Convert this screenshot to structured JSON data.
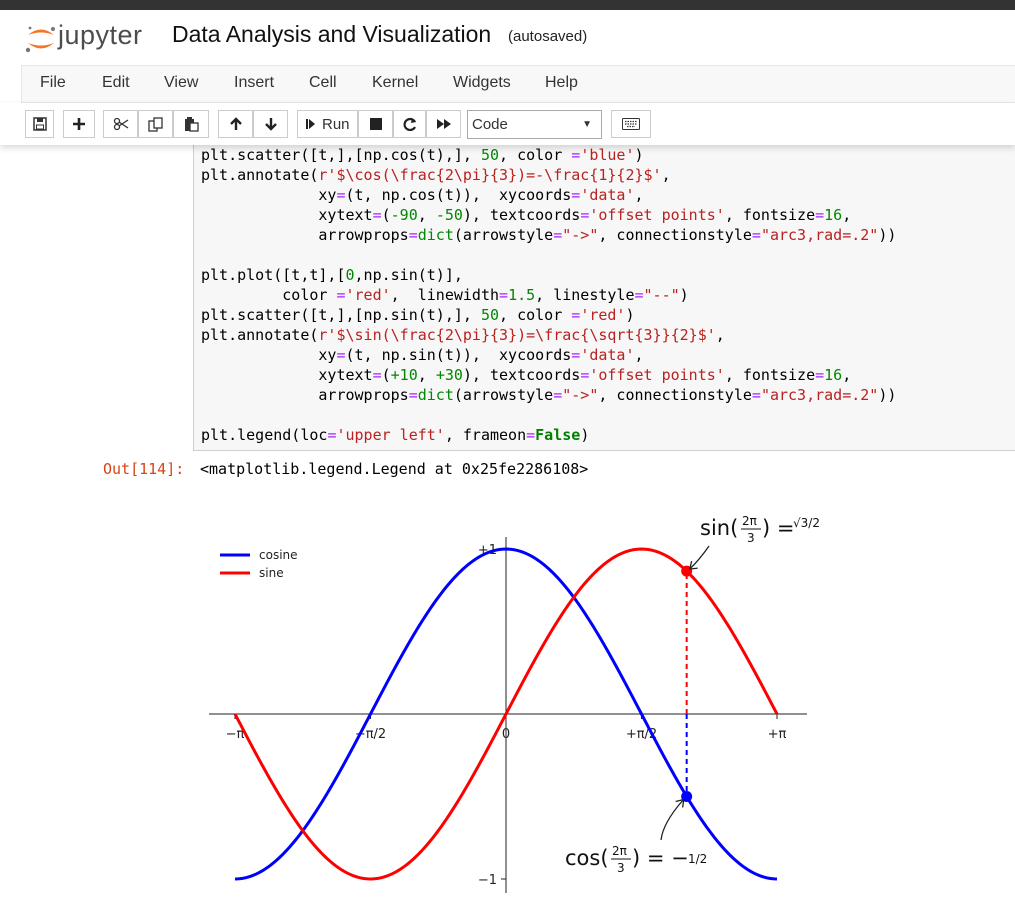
{
  "header": {
    "logo_text": "jupyter",
    "notebook_title": "Data Analysis and Visualization",
    "autosave_status": "(autosaved)"
  },
  "menu": [
    "File",
    "Edit",
    "View",
    "Insert",
    "Cell",
    "Kernel",
    "Widgets",
    "Help"
  ],
  "toolbar": {
    "run_label": "Run",
    "cell_type": "Code",
    "icons": [
      "save-icon",
      "plus-icon",
      "scissors-icon",
      "copy-icon",
      "paste-icon",
      "arrow-up-icon",
      "arrow-down-icon",
      "step-forward-icon",
      "stop-icon",
      "restart-icon",
      "fast-forward-icon",
      "keyboard-icon"
    ]
  },
  "code_lines": [
    "plt.scatter([t,],[np.cos(t),], 50, color ='blue')",
    "plt.annotate(r'$\\cos(\\frac{2\\pi}{3})=-\\frac{1}{2}$',",
    "             xy=(t, np.cos(t)),  xycoords='data',",
    "             xytext=(-90, -50), textcoords='offset points', fontsize=16,",
    "             arrowprops=dict(arrowstyle=\"->\", connectionstyle=\"arc3,rad=.2\"))",
    "",
    "plt.plot([t,t],[0,np.sin(t)],",
    "         color ='red',  linewidth=1.5, linestyle=\"--\")",
    "plt.scatter([t,],[np.sin(t),], 50, color ='red')",
    "plt.annotate(r'$\\sin(\\frac{2\\pi}{3})=\\frac{\\sqrt{3}}{2}$',",
    "             xy=(t, np.sin(t)),  xycoords='data',",
    "             xytext=(+10, +30), textcoords='offset points', fontsize=16,",
    "             arrowprops=dict(arrowstyle=\"->\", connectionstyle=\"arc3,rad=.2\"))",
    "",
    "plt.legend(loc='upper left', frameon=False)"
  ],
  "output": {
    "prompt": "Out[114]:",
    "text": "<matplotlib.legend.Legend at 0x25fe2286108>"
  },
  "chart_data": {
    "type": "line",
    "title": "",
    "xlabel": "",
    "ylabel": "",
    "xlim": [
      -3.1416,
      3.1416
    ],
    "ylim": [
      -1,
      1
    ],
    "series": [
      {
        "name": "cosine",
        "function": "cos",
        "color": "#0000ff"
      },
      {
        "name": "sine",
        "function": "sin",
        "color": "#ff0000"
      }
    ],
    "x_tick_values": [
      -3.1416,
      -1.5708,
      0,
      1.5708,
      3.1416
    ],
    "x_tick_labels": [
      "−π",
      "−π/2",
      "0",
      "+π/2",
      "+π"
    ],
    "y_tick_values": [
      -1,
      1
    ],
    "y_tick_labels": [
      "−1",
      "+1"
    ],
    "legend_position": "upper-left",
    "t": 2.0944,
    "points": [
      {
        "x": 2.0944,
        "y": -0.5,
        "color": "#0000ff"
      },
      {
        "x": 2.0944,
        "y": 0.866,
        "color": "#ff0000"
      }
    ],
    "annotations": [
      {
        "name": "sin-annotation",
        "left": "sin(",
        "num": "2π",
        "den": "3",
        "right": ") =",
        "result": "√3/2"
      },
      {
        "name": "cos-annotation",
        "left": "cos(",
        "num": "2π",
        "den": "3",
        "right": ") = −",
        "result": "1/2"
      }
    ]
  },
  "colors": {
    "out_prompt": "#d84315",
    "code_bg": "#f7f7f7"
  }
}
